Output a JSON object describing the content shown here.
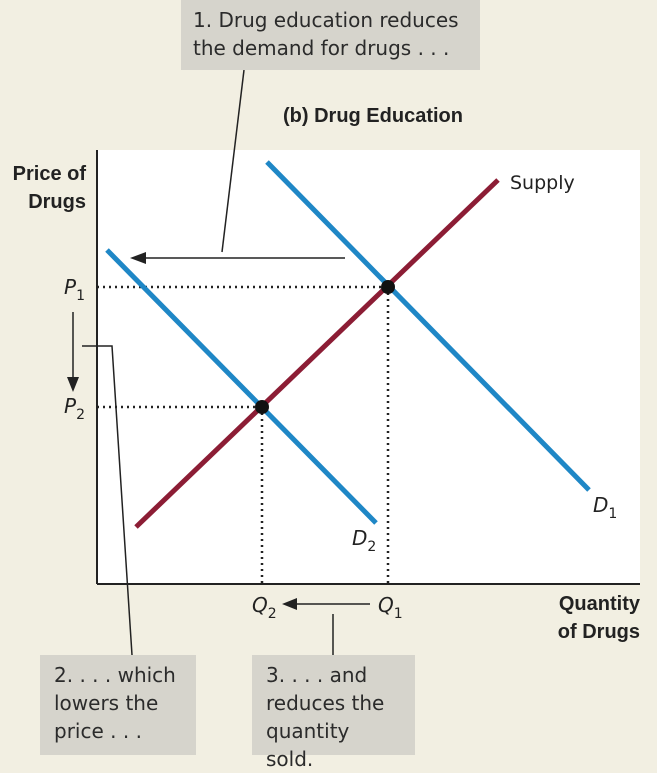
{
  "chart_data": {
    "type": "line",
    "title": "(b) Drug Education",
    "ylabel": [
      "Price of",
      "Drugs"
    ],
    "xlabel": [
      "Quantity",
      "of Drugs"
    ],
    "y_ticks": [
      {
        "name": "P",
        "sub": "1"
      },
      {
        "name": "P",
        "sub": "2"
      }
    ],
    "x_ticks": [
      {
        "name": "Q",
        "sub": "2"
      },
      {
        "name": "Q",
        "sub": "1"
      }
    ],
    "series": [
      {
        "name": "Supply",
        "color": "#8c1d35"
      },
      {
        "name": "D",
        "sub": "1",
        "color": "#1f87c6"
      },
      {
        "name": "D",
        "sub": "2",
        "color": "#1f87c6"
      }
    ],
    "grid": false
  },
  "annotations": {
    "callout_1": [
      "1. Drug education reduces",
      "the demand for drugs . . ."
    ],
    "callout_2": [
      "2. . . . which",
      "lowers the",
      "price . . ."
    ],
    "callout_3": [
      "3. . . . and",
      "reduces the",
      "quantity sold."
    ]
  }
}
